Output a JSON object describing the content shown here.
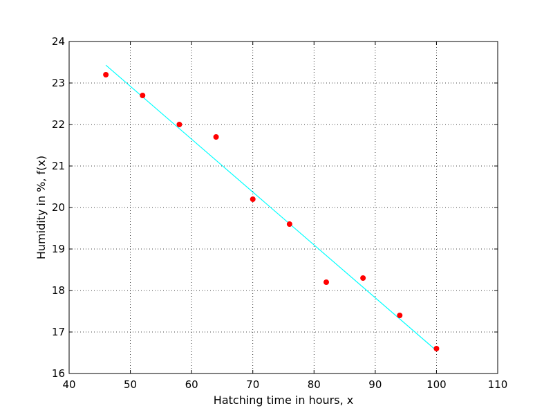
{
  "chart_data": {
    "type": "scatter",
    "title": "",
    "xlabel": "Hatching time in hours, x",
    "ylabel": "Humidity in %, f(x)",
    "xlim": [
      40,
      110
    ],
    "ylim": [
      16,
      24
    ],
    "xticks": [
      40,
      50,
      60,
      70,
      80,
      90,
      100,
      110
    ],
    "yticks": [
      16,
      17,
      18,
      19,
      20,
      21,
      22,
      23,
      24
    ],
    "grid": true,
    "legend": "none",
    "series": [
      {
        "type": "scatter",
        "color": "#ff0000",
        "x": [
          46,
          52,
          58,
          64,
          70,
          76,
          82,
          88,
          94,
          100
        ],
        "y": [
          23.2,
          22.7,
          22.0,
          21.7,
          20.2,
          19.6,
          18.2,
          18.3,
          17.4,
          16.6
        ]
      },
      {
        "type": "line",
        "color": "#00ffff",
        "x": [
          46,
          100
        ],
        "y": [
          23.43,
          16.55
        ]
      }
    ]
  }
}
